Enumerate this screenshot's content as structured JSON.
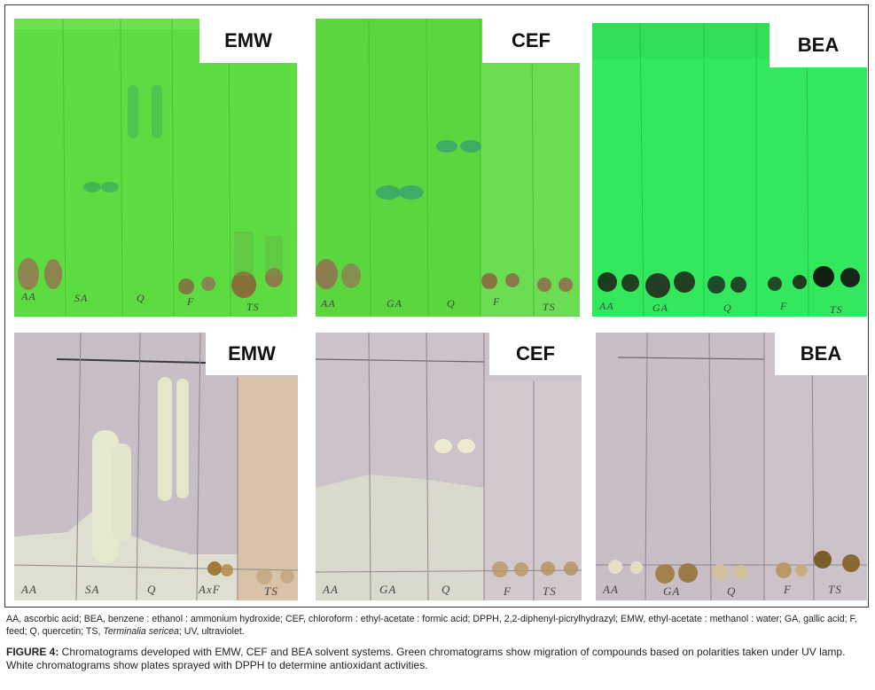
{
  "plates": {
    "top_left": {
      "label": "EMW",
      "lanes": [
        "AA",
        "SA",
        "Q",
        "F",
        "TS"
      ]
    },
    "top_middle": {
      "label": "CEF",
      "lanes": [
        "AA",
        "GA",
        "Q",
        "F",
        "TS"
      ]
    },
    "top_right": {
      "label": "BEA",
      "lanes": [
        "AA",
        "GA",
        "Q",
        "F",
        "TS"
      ]
    },
    "bottom_left": {
      "label": "EMW",
      "lanes": [
        "AA",
        "SA",
        "Q",
        "AxF",
        "TS"
      ]
    },
    "bottom_middle": {
      "label": "CEF",
      "lanes": [
        "AA",
        "GA",
        "Q",
        "F",
        "TS"
      ]
    },
    "bottom_right": {
      "label": "BEA",
      "lanes": [
        "AA",
        "GA",
        "Q",
        "F",
        "TS"
      ]
    }
  },
  "abbreviations": {
    "before_italic": "AA, ascorbic acid; BEA, benzene : ethanol : ammonium hydroxide; CEF, chloroform : ethyl-acetate : formic acid; DPPH, 2,2-diphenyl-picrylhydrazyl; EMW, ethyl-acetate : methanol : water; GA, gallic acid; F, feed; Q, quercetin; TS, ",
    "italic": "Terminalia sericea",
    "after_italic": "; UV, ultraviolet."
  },
  "caption": {
    "figure_label": "FIGURE 4:",
    "text": " Chromatograms developed with EMW, CEF and BEA solvent systems. Green chromatograms show migration of compounds based on polarities taken under UV lamp. White chromatograms show plates sprayed with DPPH to determine antioxidant activities."
  },
  "colors": {
    "uv_plate": "#5fdc3f",
    "uv_plate_bea": "#33e65a",
    "dpph_plate": "#c9c0c6",
    "spot_brown": "#8a7a45",
    "spot_dark": "#1f3f22"
  }
}
